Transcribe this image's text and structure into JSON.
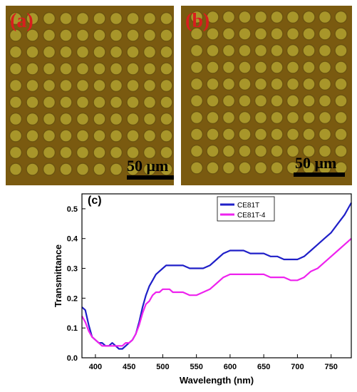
{
  "panels": {
    "a": {
      "label": "(a)",
      "scale": "50 μm"
    },
    "b": {
      "label": "(b)",
      "scale": "50 μm"
    },
    "c": {
      "label": "(c)"
    }
  },
  "micrograph": {
    "rows": 10,
    "cols": 10,
    "background": "#7a5a10",
    "dot_fill": "#a8962a",
    "dot_rim": "#6c5410"
  },
  "chart_data": {
    "type": "line",
    "title": "",
    "panel_label": "(c)",
    "xlabel": "Wavelength (nm)",
    "ylabel": "Transmittance",
    "xlim": [
      380,
      780
    ],
    "ylim": [
      0,
      0.55
    ],
    "xticks": [
      400,
      450,
      500,
      550,
      600,
      650,
      700,
      750
    ],
    "yticks": [
      0.0,
      0.1,
      0.2,
      0.3,
      0.4,
      0.5
    ],
    "xtick_labels": [
      "400",
      "450",
      "500",
      "550",
      "600",
      "650",
      "700",
      "750"
    ],
    "ytick_labels": [
      "0.0",
      "0.1",
      "0.2",
      "0.3",
      "0.4",
      "0.5"
    ],
    "legend_position": "top-right",
    "grid": false,
    "series": [
      {
        "name": "CE81T",
        "color": "#1f1fc8",
        "x": [
          380,
          385,
          390,
          395,
          400,
          405,
          410,
          415,
          420,
          425,
          430,
          435,
          440,
          445,
          450,
          455,
          460,
          465,
          470,
          475,
          480,
          485,
          490,
          495,
          500,
          505,
          510,
          515,
          520,
          530,
          540,
          550,
          560,
          570,
          580,
          590,
          600,
          610,
          620,
          630,
          640,
          650,
          660,
          670,
          680,
          690,
          700,
          710,
          720,
          730,
          740,
          750,
          760,
          770,
          775,
          780
        ],
        "y": [
          0.17,
          0.16,
          0.11,
          0.07,
          0.06,
          0.05,
          0.05,
          0.04,
          0.04,
          0.05,
          0.04,
          0.03,
          0.03,
          0.04,
          0.05,
          0.06,
          0.08,
          0.12,
          0.17,
          0.21,
          0.24,
          0.26,
          0.28,
          0.29,
          0.3,
          0.31,
          0.31,
          0.31,
          0.31,
          0.31,
          0.3,
          0.3,
          0.3,
          0.31,
          0.33,
          0.35,
          0.36,
          0.36,
          0.36,
          0.35,
          0.35,
          0.35,
          0.34,
          0.34,
          0.33,
          0.33,
          0.33,
          0.34,
          0.36,
          0.38,
          0.4,
          0.42,
          0.45,
          0.48,
          0.5,
          0.52
        ]
      },
      {
        "name": "CE81T-4",
        "color": "#ee22ee",
        "x": [
          380,
          385,
          390,
          395,
          400,
          405,
          410,
          415,
          420,
          425,
          430,
          435,
          440,
          445,
          450,
          455,
          460,
          465,
          470,
          475,
          480,
          485,
          490,
          495,
          500,
          505,
          510,
          515,
          520,
          530,
          540,
          550,
          560,
          570,
          580,
          590,
          600,
          610,
          620,
          630,
          640,
          650,
          660,
          670,
          680,
          690,
          700,
          710,
          720,
          730,
          740,
          750,
          760,
          770,
          775,
          780
        ],
        "y": [
          0.14,
          0.12,
          0.09,
          0.07,
          0.06,
          0.05,
          0.04,
          0.04,
          0.04,
          0.04,
          0.04,
          0.04,
          0.04,
          0.05,
          0.05,
          0.06,
          0.08,
          0.11,
          0.15,
          0.18,
          0.19,
          0.21,
          0.22,
          0.22,
          0.23,
          0.23,
          0.23,
          0.22,
          0.22,
          0.22,
          0.21,
          0.21,
          0.22,
          0.23,
          0.25,
          0.27,
          0.28,
          0.28,
          0.28,
          0.28,
          0.28,
          0.28,
          0.27,
          0.27,
          0.27,
          0.26,
          0.26,
          0.27,
          0.29,
          0.3,
          0.32,
          0.34,
          0.36,
          0.38,
          0.39,
          0.4
        ]
      }
    ]
  }
}
